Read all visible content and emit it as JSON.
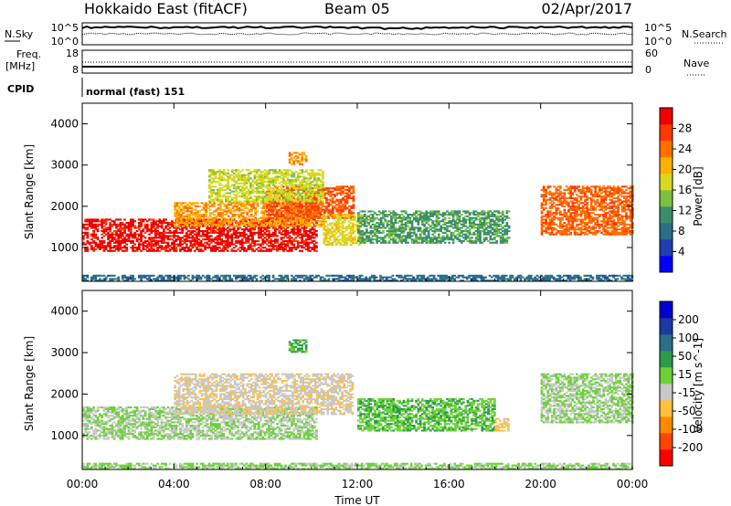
{
  "header": {
    "station": "Hokkaido East (fitACF)",
    "beam": "Beam 05",
    "date": "02/Apr/2017"
  },
  "strip": {
    "nsky_label": "N.Sky",
    "nsearch_label": "N.Search",
    "nsky_ticks": [
      "10^5",
      "10^0"
    ],
    "nsearch_ticks": [
      "10^5",
      "10^0"
    ],
    "freq_label_1": "Freq.",
    "freq_label_2": "[MHz]",
    "freq_ticks": [
      "18",
      "8"
    ],
    "nave_label": "Nave",
    "nave_ticks": [
      "60",
      "0"
    ],
    "cpid_label": "CPID",
    "cpid_value": "normal (fast) 151"
  },
  "colors": {
    "power_scale": [
      "#0000ff",
      "#1f3fb0",
      "#2a6e8a",
      "#3a8f6a",
      "#7cc040",
      "#d8d820",
      "#ffb000",
      "#ff7000",
      "#ff3a00",
      "#ee0000"
    ],
    "velocity_scale": [
      "#ff0000",
      "#ff4500",
      "#ff8c00",
      "#ffc040",
      "#c8c8c8",
      "#6cd23a",
      "#2e9a4a",
      "#2a6e8a",
      "#1a3aa0",
      "#0000d0"
    ],
    "ground_scatter": "#bfbfbf"
  },
  "chart_data": [
    {
      "type": "heatmap",
      "name": "power",
      "ylabel": "Slant Range [km]",
      "xlabel": "",
      "xlim": [
        0,
        24
      ],
      "ylim": [
        180,
        4500
      ],
      "x_ticks": [
        "00:00",
        "04:00",
        "08:00",
        "12:00",
        "16:00",
        "20:00",
        "00:00"
      ],
      "x_tick_values": [
        0,
        4,
        8,
        12,
        16,
        20,
        24
      ],
      "y_ticks": [
        1000,
        2000,
        3000,
        4000
      ],
      "colorbar": {
        "label": "Power [dB]",
        "min": 0,
        "max": 32,
        "ticks": [
          4,
          8,
          12,
          16,
          20,
          24,
          28
        ]
      },
      "regions": [
        {
          "t0": 0.0,
          "t1": 10.2,
          "r0": 900,
          "r1": 1700,
          "value": 30
        },
        {
          "t0": 4.0,
          "t1": 10.5,
          "r0": 1500,
          "r1": 2100,
          "value": 22
        },
        {
          "t0": 8.0,
          "t1": 11.8,
          "r0": 1700,
          "r1": 2500,
          "value": 26
        },
        {
          "t0": 5.5,
          "t1": 10.5,
          "r0": 2100,
          "r1": 2900,
          "value": 17
        },
        {
          "t0": 9.0,
          "t1": 9.8,
          "r0": 3000,
          "r1": 3300,
          "value": 22
        },
        {
          "t0": 10.5,
          "t1": 12.2,
          "r0": 1050,
          "r1": 1800,
          "value": 18
        },
        {
          "t0": 12.0,
          "t1": 18.6,
          "r0": 1100,
          "r1": 1900,
          "value": 12
        },
        {
          "t0": 20.0,
          "t1": 24.0,
          "r0": 1300,
          "r1": 2500,
          "value": 25
        },
        {
          "t0": 0.0,
          "t1": 24.0,
          "r0": 180,
          "r1": 330,
          "value": 8
        }
      ]
    },
    {
      "type": "heatmap",
      "name": "velocity",
      "ylabel": "Slant Range [km]",
      "xlabel": "Time UT",
      "xlim": [
        0,
        24
      ],
      "ylim": [
        180,
        4500
      ],
      "x_ticks": [
        "00:00",
        "04:00",
        "08:00",
        "12:00",
        "16:00",
        "20:00",
        "00:00"
      ],
      "x_tick_values": [
        0,
        4,
        8,
        12,
        16,
        20,
        24
      ],
      "y_ticks": [
        1000,
        2000,
        3000,
        4000
      ],
      "colorbar": {
        "label": "Velocity [m s^-1]",
        "min": -250,
        "max": 250,
        "ticks": [
          -200,
          -100,
          -50,
          -15,
          15,
          50,
          100,
          200
        ]
      },
      "regions": [
        {
          "t0": 0.0,
          "t1": 10.2,
          "r0": 900,
          "r1": 1700,
          "value": 0
        },
        {
          "t0": 4.0,
          "t1": 11.8,
          "r0": 1500,
          "r1": 2500,
          "value": -40
        },
        {
          "t0": 9.0,
          "t1": 9.8,
          "r0": 3000,
          "r1": 3300,
          "value": 60
        },
        {
          "t0": 12.0,
          "t1": 18.0,
          "r0": 1100,
          "r1": 1900,
          "value": 40
        },
        {
          "t0": 18.0,
          "t1": 18.6,
          "r0": 1100,
          "r1": 1400,
          "value": -60
        },
        {
          "t0": 20.0,
          "t1": 24.0,
          "r0": 1300,
          "r1": 2500,
          "value": 0
        },
        {
          "t0": 0.0,
          "t1": 24.0,
          "r0": 180,
          "r1": 330,
          "value": 10
        }
      ]
    }
  ]
}
